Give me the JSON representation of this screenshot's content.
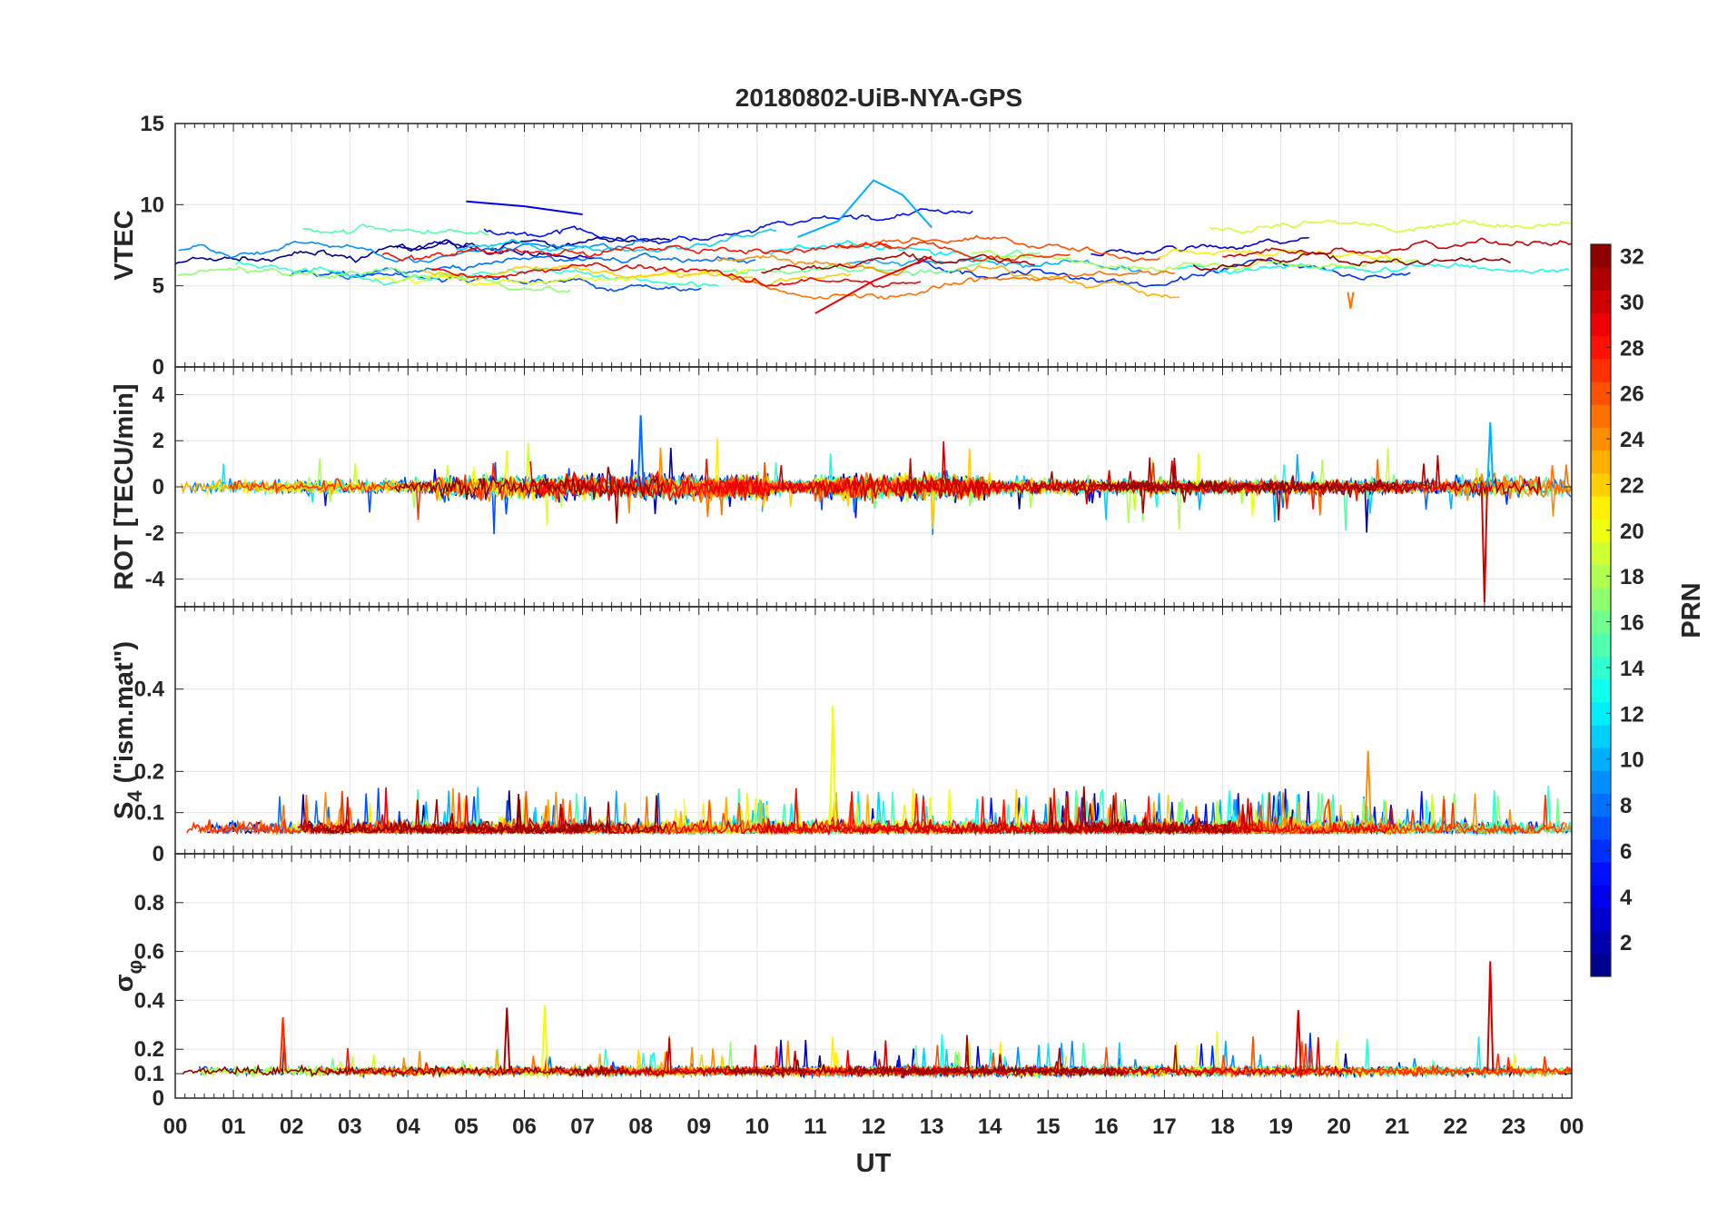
{
  "chart_data": {
    "type": "line",
    "title": "20180802-UiB-NYA-GPS",
    "xlabel": "UT",
    "x_ticks": [
      "00",
      "01",
      "02",
      "03",
      "04",
      "05",
      "06",
      "07",
      "08",
      "09",
      "10",
      "11",
      "12",
      "13",
      "14",
      "15",
      "16",
      "17",
      "18",
      "19",
      "20",
      "21",
      "22",
      "23",
      "00"
    ],
    "xlim_hours": [
      0,
      24
    ],
    "colorbar": {
      "label": "PRN",
      "range": [
        1,
        32
      ],
      "tick_values": [
        2,
        4,
        6,
        8,
        10,
        12,
        14,
        16,
        18,
        20,
        22,
        24,
        26,
        28,
        30,
        32
      ],
      "colormap": "jet"
    },
    "panels": [
      {
        "id": "vtec",
        "ylabel": "VTEC",
        "ylim": [
          0,
          15
        ],
        "y_ticks": [
          0,
          5,
          10,
          15
        ],
        "y_tick_labels": [
          "0",
          "5",
          "10",
          "15"
        ],
        "series_note": "one line per PRN, values mostly 4-11 TECU",
        "features": [
          {
            "prn": 10,
            "peak_hour": 12.0,
            "peak_value": 11.5
          },
          {
            "prn": 4,
            "start_hour": 5.0,
            "value": 10.2
          },
          {
            "prn": 29,
            "start_hour": 11.0,
            "value": 3.3
          },
          {
            "prn": 25,
            "hour": 20.2,
            "value": 3.6
          }
        ]
      },
      {
        "id": "rot",
        "ylabel": "ROT [TECU/min]",
        "ylim": [
          -5.2,
          5.2
        ],
        "y_ticks": [
          -4,
          -2,
          0,
          2,
          4
        ],
        "y_tick_labels": [
          "-4",
          "-2",
          "0",
          "2",
          "4"
        ],
        "series_note": "noise around 0, spikes up to ~3 and down to ~-5",
        "features": [
          {
            "prn": 30,
            "hour": 22.5,
            "value": -5.0
          },
          {
            "prn": 8,
            "hour": 8.0,
            "value": 3.1
          },
          {
            "prn": 10,
            "hour": 22.6,
            "value": 2.8
          }
        ]
      },
      {
        "id": "s4",
        "ylabel": "S4 (\"ism.mat\")",
        "ylabel_main": "S",
        "ylabel_sub": "4",
        "ylabel_rest": " (\"ism.mat\")",
        "ylim": [
          0,
          0.6
        ],
        "y_ticks": [
          0,
          0.1,
          0.2,
          0.4
        ],
        "y_tick_labels": [
          "0",
          "0.1",
          "0.2",
          "0.4"
        ],
        "series_note": "background 0.03-0.1 with bursts to 0.2-0.35",
        "features": [
          {
            "prn": 20,
            "hour": 11.3,
            "value": 0.36
          },
          {
            "prn": 24,
            "hour": 20.5,
            "value": 0.25
          }
        ]
      },
      {
        "id": "sigma_phi",
        "ylabel": "σ φ",
        "ylabel_main": "σ",
        "ylabel_sub": "φ",
        "ylim": [
          0,
          1.0
        ],
        "y_ticks": [
          0,
          0.1,
          0.2,
          0.4,
          0.6,
          0.8
        ],
        "y_tick_labels": [
          "0",
          "0.1",
          "0.2",
          "0.4",
          "0.6",
          "0.8"
        ],
        "series_note": "background ~0.1 with spikes",
        "features": [
          {
            "prn": 30,
            "hour": 22.6,
            "value": 0.56
          },
          {
            "prn": 20,
            "hour": 6.35,
            "value": 0.38
          },
          {
            "prn": 31,
            "hour": 5.7,
            "value": 0.37
          },
          {
            "prn": 30,
            "hour": 19.3,
            "value": 0.36
          },
          {
            "prn": 27,
            "hour": 1.85,
            "value": 0.33
          }
        ]
      }
    ]
  }
}
